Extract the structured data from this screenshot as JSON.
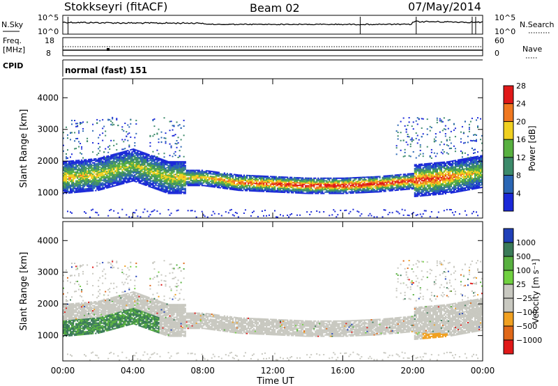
{
  "header": {
    "station": "Stokkseyri (fitACF)",
    "beam": "Beam 02",
    "date": "07/May/2014"
  },
  "top_panels": {
    "nsky_label": "N.Sky",
    "nsky_tick_top": "10^5",
    "nsky_tick_bottom": "10^0",
    "nsearch_label": "N.Search",
    "nsearch_tick_top": "10^5",
    "nsearch_tick_bottom": "10^0",
    "freq_label": "Freq.",
    "freq_unit": "[MHz]",
    "freq_tick_top": "18",
    "freq_tick_bottom": "8",
    "nave_label": "Nave",
    "nave_tick_top": "60",
    "nave_tick_bottom": "0",
    "cpid_label": "CPID",
    "cpid_value": "normal (fast) 151"
  },
  "chart_data": [
    {
      "type": "heatmap",
      "name": "power",
      "xlabel": "",
      "ylabel": "Slant Range [km]",
      "x_ticks": [
        "00:00",
        "04:00",
        "08:00",
        "12:00",
        "16:00",
        "20:00",
        "00:00"
      ],
      "y_ticks": [
        1000,
        2000,
        3000,
        4000
      ],
      "ylim": [
        200,
        4600
      ],
      "colorbar_label": "Power [dB]",
      "colorbar_ticks": [
        4,
        8,
        12,
        16,
        20,
        24,
        28
      ],
      "colorbar_colors": [
        "#1a28d8",
        "#2a66b4",
        "#3c8a6a",
        "#58b040",
        "#f0d020",
        "#f07820",
        "#e01818"
      ],
      "main_echo_band": {
        "hours": [
          0,
          2,
          4,
          6,
          8,
          10,
          12,
          14,
          16,
          18,
          20,
          22,
          24
        ],
        "center_range_km": [
          1500,
          1600,
          1900,
          1500,
          1500,
          1350,
          1300,
          1250,
          1250,
          1300,
          1400,
          1500,
          1700
        ],
        "peak_power_db": [
          20,
          18,
          16,
          18,
          20,
          24,
          26,
          28,
          28,
          28,
          26,
          24,
          16
        ]
      }
    },
    {
      "type": "heatmap",
      "name": "velocity",
      "xlabel": "Time UT",
      "ylabel": "Slant Range [km]",
      "x_ticks": [
        "00:00",
        "04:00",
        "08:00",
        "12:00",
        "16:00",
        "20:00",
        "00:00"
      ],
      "y_ticks": [
        1000,
        2000,
        3000,
        4000
      ],
      "ylim": [
        200,
        4600
      ],
      "colorbar_label": "Velocity [m s⁻¹]",
      "colorbar_ticks": [
        "1000",
        "500",
        "100",
        "25",
        "−25",
        "−100",
        "−500",
        "−1000"
      ],
      "colorbar_colors": [
        "#2040b8",
        "#3a7a58",
        "#58b040",
        "#70d040",
        "#c8c8c0",
        "#c8c8c0",
        "#f0a020",
        "#e06818",
        "#e01818"
      ]
    }
  ]
}
